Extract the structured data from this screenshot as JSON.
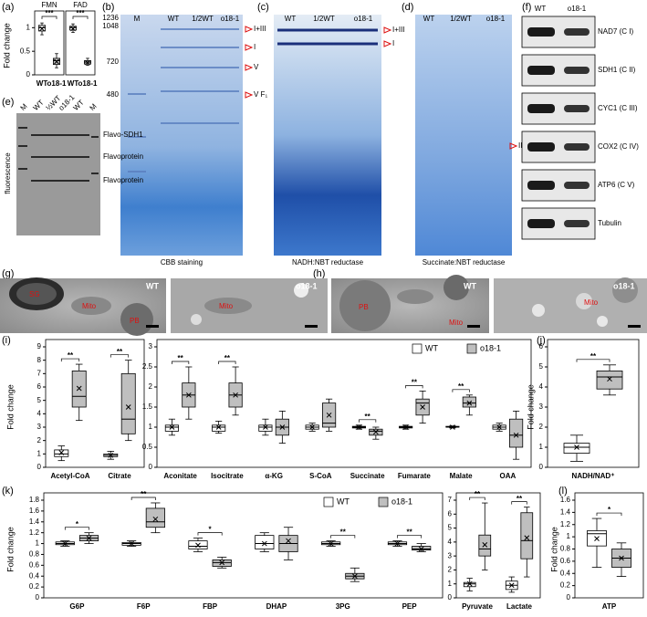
{
  "labels": [
    "(a)",
    "(b)",
    "(c)",
    "(d)",
    "(e)",
    "(f)",
    "(g)",
    "(h)",
    "(i)",
    "(j)",
    "(k)",
    "(l)"
  ],
  "a": {
    "ylabel": "Fold change",
    "charts": [
      {
        "type": "box",
        "title": "FMN",
        "ylim": [
          0,
          1.2
        ],
        "yticks": [
          0,
          0.5,
          1
        ],
        "categories": [
          "WT",
          "o18-1"
        ],
        "colors": [
          "#ffffff",
          "#bfbfbf"
        ],
        "significance": "***",
        "boxes": [
          {
            "min": 0.85,
            "q1": 0.93,
            "median": 1.0,
            "q3": 1.05,
            "max": 1.1,
            "mean": 0.98
          },
          {
            "min": 0.15,
            "q1": 0.22,
            "median": 0.3,
            "q3": 0.35,
            "max": 0.45,
            "mean": 0.28
          }
        ]
      },
      {
        "type": "box",
        "title": "FAD",
        "ylim": [
          0,
          1.2
        ],
        "categories": [
          "WT",
          "o18-1"
        ],
        "colors": [
          "#ffffff",
          "#bfbfbf"
        ],
        "significance": "***",
        "boxes": [
          {
            "min": 0.9,
            "q1": 0.95,
            "median": 1.0,
            "q3": 1.03,
            "max": 1.08,
            "mean": 0.98
          },
          {
            "min": 0.2,
            "q1": 0.23,
            "median": 0.27,
            "q3": 0.3,
            "max": 0.35,
            "mean": 0.26
          }
        ]
      }
    ]
  },
  "b": {
    "lanes": [
      "M",
      "WT",
      "1/2WT",
      "o18-1"
    ],
    "markers": [
      1236,
      1048,
      720,
      480
    ],
    "bands": [
      "I+III",
      "I",
      "V",
      "V F₁"
    ],
    "caption": "CBB staining"
  },
  "c": {
    "lanes": [
      "WT",
      "1/2WT",
      "o18-1"
    ],
    "bands": [
      "I+III",
      "I"
    ],
    "caption": "NADH:NBT reductase"
  },
  "d": {
    "lanes": [
      "WT",
      "1/2WT",
      "o18-1"
    ],
    "bands": [
      "II"
    ],
    "caption": "Succinate:NBT reductase"
  },
  "e": {
    "lanes": [
      "M",
      "WT",
      "½WT",
      "o18-1",
      "WT",
      "M"
    ],
    "bands": [
      "Flavo-SDH1",
      "Flavoprotein",
      "Flavoprotein"
    ],
    "ylabel": "fluorescence"
  },
  "f": {
    "lanes": [
      "WT",
      "o18-1"
    ],
    "blots": [
      "NAD7 (C I)",
      "SDH1 (C II)",
      "CYC1 (C III)",
      "COX2 (C IV)",
      "ATP6 (C V)",
      "Tubulin"
    ]
  },
  "g": {
    "images": [
      {
        "title": "WT",
        "labels": [
          "SG",
          "Mito",
          "PB"
        ]
      },
      {
        "title": "o18-1",
        "labels": [
          "Mito"
        ]
      }
    ]
  },
  "h": {
    "images": [
      {
        "title": "WT",
        "labels": [
          "PB",
          "Mito"
        ]
      },
      {
        "title": "o18-1",
        "labels": [
          "Mito"
        ]
      }
    ]
  },
  "i": {
    "ylabel": "Fold change",
    "charts": [
      {
        "type": "box",
        "ylim": [
          0,
          9
        ],
        "yticks": [
          0,
          1,
          2,
          3,
          4,
          5,
          6,
          7,
          8,
          9
        ],
        "categories": [
          "Acetyl-CoA",
          "Citrate"
        ],
        "significance": [
          "**",
          "**"
        ],
        "series": [
          {
            "color": "#ffffff",
            "boxes": [
              {
                "min": 0.5,
                "q1": 0.8,
                "median": 1.0,
                "q3": 1.3,
                "max": 1.6,
                "mean": 1.1
              },
              {
                "min": 0.6,
                "q1": 0.8,
                "median": 0.9,
                "q3": 1.0,
                "max": 1.2,
                "mean": 0.9
              }
            ]
          },
          {
            "color": "#bfbfbf",
            "boxes": [
              {
                "min": 3.5,
                "q1": 4.5,
                "median": 5.3,
                "q3": 7.2,
                "max": 7.7,
                "mean": 5.9
              },
              {
                "min": 2.0,
                "q1": 2.5,
                "median": 3.6,
                "q3": 7.0,
                "max": 8.0,
                "mean": 4.5
              }
            ]
          }
        ]
      },
      {
        "type": "box",
        "ylim": [
          0,
          3
        ],
        "yticks": [
          0,
          0.5,
          1,
          1.5,
          2,
          2.5,
          3
        ],
        "legend": "upper right",
        "categories": [
          "Aconitate",
          "Isocitrate",
          "α-KG",
          "S-CoA",
          "Succinate",
          "Fumarate",
          "Malate",
          "OAA"
        ],
        "significance": [
          "**",
          "**",
          null,
          null,
          "**",
          "**",
          "**",
          null
        ],
        "series": [
          {
            "name": "WT",
            "color": "#ffffff",
            "boxes": [
              {
                "min": 0.8,
                "q1": 0.9,
                "median": 1.0,
                "q3": 1.05,
                "max": 1.2,
                "mean": 1.0
              },
              {
                "min": 0.85,
                "q1": 0.9,
                "median": 1.0,
                "q3": 1.05,
                "max": 1.15,
                "mean": 1.0
              },
              {
                "min": 0.8,
                "q1": 0.9,
                "median": 1.0,
                "q3": 1.05,
                "max": 1.2,
                "mean": 1.0
              },
              {
                "min": 0.9,
                "q1": 0.95,
                "median": 1.0,
                "q3": 1.05,
                "max": 1.1,
                "mean": 1.0
              },
              {
                "min": 0.95,
                "q1": 0.98,
                "median": 1.0,
                "q3": 1.02,
                "max": 1.05,
                "mean": 1.0
              },
              {
                "min": 0.95,
                "q1": 0.98,
                "median": 1.0,
                "q3": 1.02,
                "max": 1.05,
                "mean": 1.0
              },
              {
                "min": 0.98,
                "q1": 1.0,
                "median": 1.0,
                "q3": 1.02,
                "max": 1.03,
                "mean": 1.0
              },
              {
                "min": 0.9,
                "q1": 0.95,
                "median": 1.0,
                "q3": 1.05,
                "max": 1.1,
                "mean": 1.0
              }
            ]
          },
          {
            "name": "o18-1",
            "color": "#bfbfbf",
            "boxes": [
              {
                "min": 1.2,
                "q1": 1.5,
                "median": 1.8,
                "q3": 2.1,
                "max": 2.5,
                "mean": 1.8
              },
              {
                "min": 1.3,
                "q1": 1.5,
                "median": 1.8,
                "q3": 2.1,
                "max": 2.5,
                "mean": 1.8
              },
              {
                "min": 0.6,
                "q1": 0.8,
                "median": 1.0,
                "q3": 1.2,
                "max": 1.4,
                "mean": 1.0
              },
              {
                "min": 0.9,
                "q1": 1.0,
                "median": 1.1,
                "q3": 1.6,
                "max": 1.7,
                "mean": 1.3
              },
              {
                "min": 0.7,
                "q1": 0.8,
                "median": 0.9,
                "q3": 0.95,
                "max": 1.0,
                "mean": 0.88
              },
              {
                "min": 1.1,
                "q1": 1.3,
                "median": 1.6,
                "q3": 1.7,
                "max": 1.9,
                "mean": 1.5
              },
              {
                "min": 1.3,
                "q1": 1.5,
                "median": 1.6,
                "q3": 1.75,
                "max": 1.8,
                "mean": 1.6
              },
              {
                "min": 0.2,
                "q1": 0.5,
                "median": 0.8,
                "q3": 1.2,
                "max": 1.4,
                "mean": 0.8
              }
            ]
          }
        ]
      }
    ]
  },
  "j": {
    "ylabel": "Fold change",
    "charts": [
      {
        "type": "box",
        "ylim": [
          0,
          6
        ],
        "yticks": [
          0,
          1,
          2,
          3,
          4,
          5,
          6
        ],
        "categories": [
          "NADH/NAD⁺"
        ],
        "significance": [
          "**"
        ],
        "series": [
          {
            "color": "#ffffff",
            "boxes": [
              {
                "min": 0.3,
                "q1": 0.7,
                "median": 1.0,
                "q3": 1.2,
                "max": 1.6,
                "mean": 1.0
              }
            ]
          },
          {
            "color": "#bfbfbf",
            "boxes": [
              {
                "min": 3.6,
                "q1": 3.9,
                "median": 4.5,
                "q3": 4.8,
                "max": 5.1,
                "mean": 4.4
              }
            ]
          }
        ]
      }
    ]
  },
  "k": {
    "ylabel": "Fold change",
    "charts": [
      {
        "type": "box",
        "ylim": [
          0,
          1.8
        ],
        "yticks": [
          0,
          0.2,
          0.4,
          0.6,
          0.8,
          1,
          1.2,
          1.4,
          1.6,
          1.8
        ],
        "legend": "upper right",
        "categories": [
          "G6P",
          "F6P",
          "FBP",
          "DHAP",
          "3PG",
          "PEP"
        ],
        "significance": [
          "*",
          "**",
          "*",
          null,
          "**",
          "**"
        ],
        "series": [
          {
            "name": "WT",
            "color": "#ffffff",
            "boxes": [
              {
                "min": 0.95,
                "q1": 0.98,
                "median": 1.0,
                "q3": 1.03,
                "max": 1.05,
                "mean": 1.0
              },
              {
                "min": 0.95,
                "q1": 0.97,
                "median": 1.0,
                "q3": 1.02,
                "max": 1.05,
                "mean": 1.0
              },
              {
                "min": 0.85,
                "q1": 0.9,
                "median": 0.95,
                "q3": 1.05,
                "max": 1.1,
                "mean": 0.97
              },
              {
                "min": 0.85,
                "q1": 0.9,
                "median": 1.0,
                "q3": 1.15,
                "max": 1.2,
                "mean": 1.0
              },
              {
                "min": 0.95,
                "q1": 0.98,
                "median": 1.0,
                "q3": 1.03,
                "max": 1.05,
                "mean": 1.0
              },
              {
                "min": 0.95,
                "q1": 0.98,
                "median": 1.0,
                "q3": 1.03,
                "max": 1.05,
                "mean": 1.0
              }
            ]
          },
          {
            "name": "o18-1",
            "color": "#bfbfbf",
            "boxes": [
              {
                "min": 1.0,
                "q1": 1.05,
                "median": 1.1,
                "q3": 1.15,
                "max": 1.2,
                "mean": 1.1
              },
              {
                "min": 1.2,
                "q1": 1.3,
                "median": 1.4,
                "q3": 1.65,
                "max": 1.75,
                "mean": 1.45
              },
              {
                "min": 0.55,
                "q1": 0.58,
                "median": 0.65,
                "q3": 0.7,
                "max": 0.75,
                "mean": 0.65
              },
              {
                "min": 0.7,
                "q1": 0.85,
                "median": 1.0,
                "q3": 1.15,
                "max": 1.3,
                "mean": 1.05
              },
              {
                "min": 0.3,
                "q1": 0.35,
                "median": 0.4,
                "q3": 0.45,
                "max": 0.55,
                "mean": 0.4
              },
              {
                "min": 0.85,
                "q1": 0.88,
                "median": 0.9,
                "q3": 0.95,
                "max": 1.0,
                "mean": 0.9
              }
            ]
          }
        ]
      },
      {
        "type": "box",
        "ylim": [
          0,
          7
        ],
        "yticks": [
          0,
          1,
          2,
          3,
          4,
          5,
          6,
          7
        ],
        "categories": [
          "Pyruvate",
          "Lactate"
        ],
        "significance": [
          "**",
          "**"
        ],
        "series": [
          {
            "color": "#ffffff",
            "boxes": [
              {
                "min": 0.5,
                "q1": 0.8,
                "median": 1.0,
                "q3": 1.1,
                "max": 1.4,
                "mean": 1.0
              },
              {
                "min": 0.4,
                "q1": 0.6,
                "median": 0.9,
                "q3": 1.2,
                "max": 1.5,
                "mean": 0.9
              }
            ]
          },
          {
            "color": "#bfbfbf",
            "boxes": [
              {
                "min": 2.0,
                "q1": 3.0,
                "median": 3.5,
                "q3": 4.5,
                "max": 6.8,
                "mean": 3.8
              },
              {
                "min": 1.5,
                "q1": 2.8,
                "median": 4.1,
                "q3": 6.1,
                "max": 6.5,
                "mean": 4.3
              }
            ]
          }
        ]
      }
    ]
  },
  "l": {
    "ylabel": "Fold change",
    "charts": [
      {
        "type": "box",
        "ylim": [
          0,
          1.6
        ],
        "yticks": [
          0,
          0.2,
          0.4,
          0.6,
          0.8,
          1,
          1.2,
          1.4,
          1.6
        ],
        "categories": [
          "ATP"
        ],
        "significance": [
          "*"
        ],
        "series": [
          {
            "color": "#ffffff",
            "boxes": [
              {
                "min": 0.5,
                "q1": 0.85,
                "median": 1.05,
                "q3": 1.1,
                "max": 1.3,
                "mean": 0.97
              }
            ]
          },
          {
            "color": "#bfbfbf",
            "boxes": [
              {
                "min": 0.35,
                "q1": 0.5,
                "median": 0.65,
                "q3": 0.8,
                "max": 0.9,
                "mean": 0.65
              }
            ]
          }
        ]
      }
    ]
  }
}
